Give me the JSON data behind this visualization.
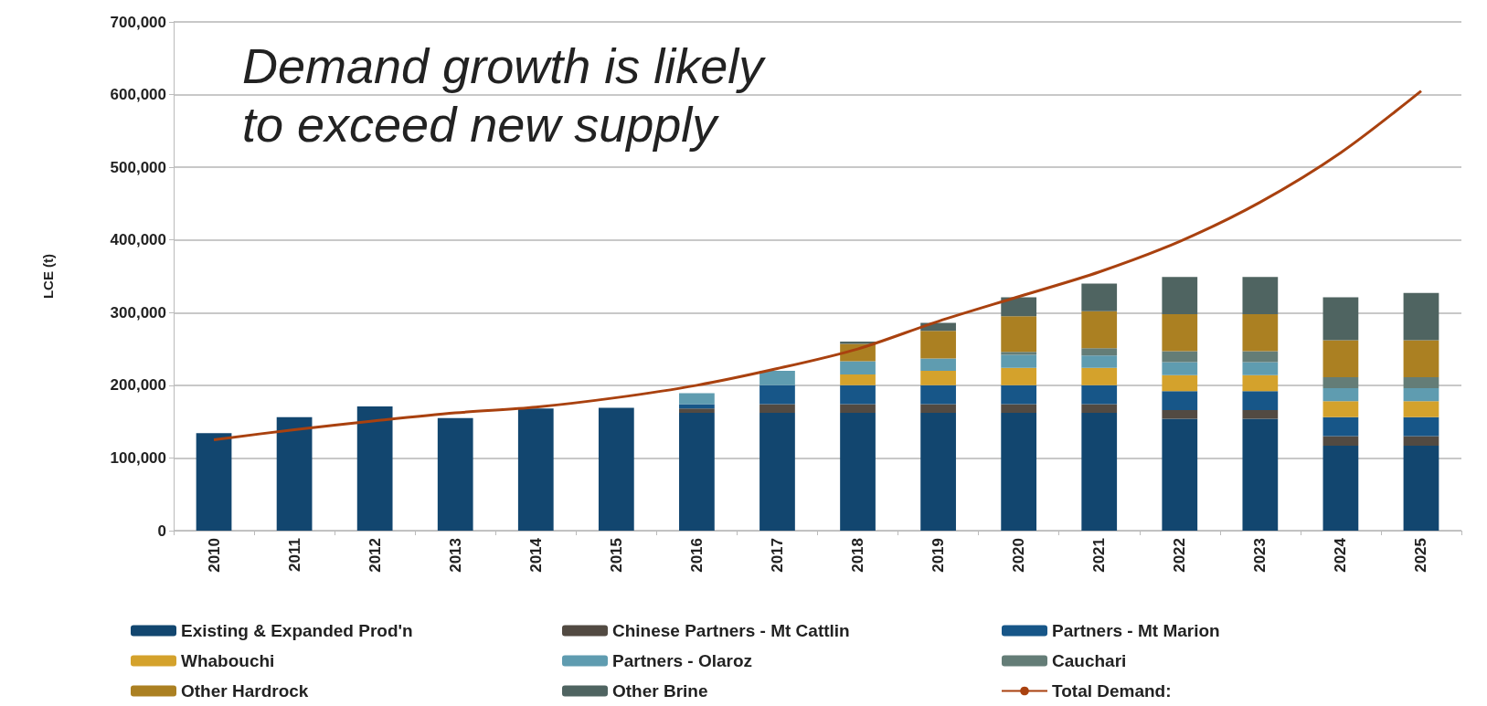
{
  "chart_data": {
    "type": "bar",
    "stacked": true,
    "ylabel": "LCE (t)",
    "annotations": [
      "Demand growth is likely\nto exceed new supply"
    ],
    "categories": [
      "2010",
      "2011",
      "2012",
      "2013",
      "2014",
      "2015",
      "2016",
      "2017",
      "2018",
      "2019",
      "2020",
      "2021",
      "2022",
      "2023",
      "2024",
      "2025"
    ],
    "series": [
      {
        "name": "Existing & Expanded Prod'n",
        "color": "#12466f",
        "values": [
          134000,
          156000,
          171000,
          155000,
          168000,
          169000,
          162000,
          162000,
          162000,
          162000,
          162000,
          162000,
          154000,
          154000,
          117000,
          117000
        ]
      },
      {
        "name": "Chinese Partners - Mt Cattlin",
        "color": "#524a42",
        "values": [
          null,
          null,
          null,
          null,
          null,
          null,
          6000,
          12000,
          12000,
          12000,
          12000,
          12000,
          12000,
          12000,
          13000,
          13000
        ]
      },
      {
        "name": "Partners - Mt Marion",
        "color": "#175688",
        "values": [
          null,
          null,
          null,
          null,
          null,
          null,
          6000,
          26000,
          26000,
          26000,
          26000,
          26000,
          26000,
          26000,
          26000,
          26000
        ]
      },
      {
        "name": "Whabouchi",
        "color": "#d4a22c",
        "values": [
          null,
          null,
          null,
          null,
          null,
          null,
          null,
          null,
          15000,
          20000,
          24000,
          24000,
          22000,
          22000,
          22000,
          22000
        ]
      },
      {
        "name": "Partners - Olaroz",
        "color": "#5f9cb0",
        "values": [
          null,
          null,
          null,
          null,
          null,
          null,
          15000,
          20000,
          18000,
          17000,
          18000,
          17000,
          18000,
          18000,
          18000,
          18000
        ]
      },
      {
        "name": "Cauchari",
        "color": "#647d77",
        "values": [
          null,
          null,
          null,
          null,
          null,
          null,
          null,
          null,
          null,
          null,
          4000,
          10000,
          15000,
          15000,
          15000,
          15000
        ]
      },
      {
        "name": "Other Hardrock",
        "color": "#ab8022",
        "values": [
          null,
          null,
          null,
          null,
          null,
          null,
          null,
          null,
          24000,
          38000,
          49000,
          51000,
          51000,
          51000,
          51000,
          51000
        ]
      },
      {
        "name": "Other Brine",
        "color": "#4f6461",
        "values": [
          null,
          null,
          null,
          null,
          null,
          null,
          null,
          null,
          3000,
          11000,
          26000,
          38000,
          51000,
          51000,
          59000,
          65000
        ]
      },
      {
        "name": "Total Demand:",
        "type": "line",
        "color": "#a9410f",
        "marker": "none",
        "values": [
          125000,
          139000,
          151000,
          162000,
          170000,
          183000,
          200000,
          223000,
          250000,
          288000,
          322000,
          356000,
          398000,
          452000,
          520000,
          605000
        ]
      }
    ],
    "ylim": [
      0,
      700000
    ],
    "yticks": [
      0,
      {
        "value": 100000,
        "label": "100,000"
      },
      {
        "value": 200000,
        "label": "200,000"
      },
      {
        "value": 300000,
        "label": "300,000"
      },
      {
        "value": 400000,
        "label": "400,000"
      },
      {
        "value": 500000,
        "label": "500,000"
      },
      {
        "value": 600000,
        "label": "600,000"
      },
      {
        "value": 700000,
        "label": "700,000"
      }
    ],
    "grid": "y",
    "legend": "bottom"
  }
}
